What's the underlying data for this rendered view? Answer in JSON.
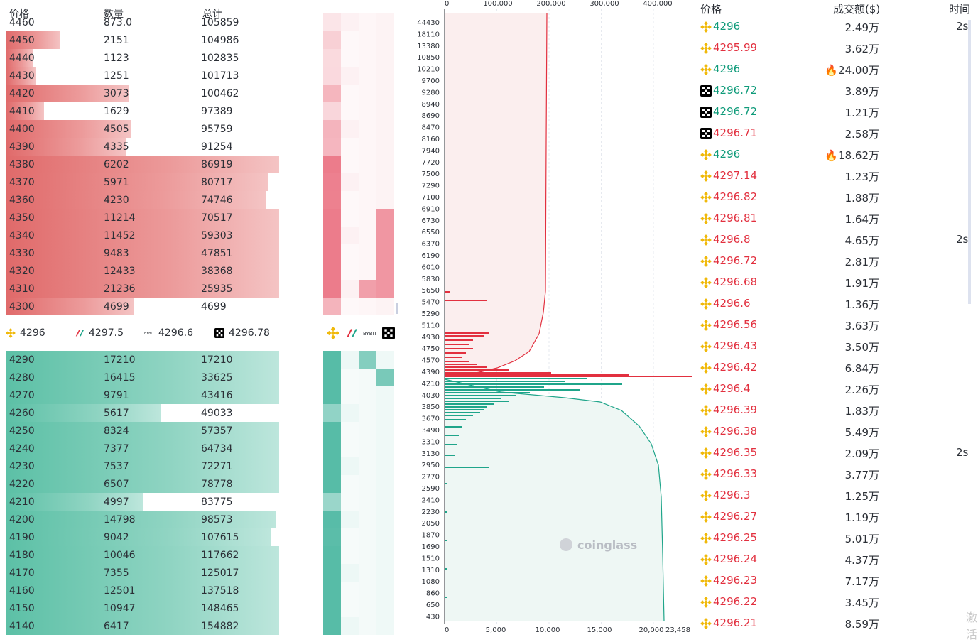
{
  "orderbook": {
    "headers": {
      "price": "价格",
      "qty": "数量",
      "total": "总计"
    },
    "asks": [
      {
        "price": "4460",
        "qty": "873.0",
        "total": "105859",
        "fill": 0.0
      },
      {
        "price": "4450",
        "qty": "2151",
        "total": "104986",
        "fill": 0.2
      },
      {
        "price": "4440",
        "qty": "1123",
        "total": "102835",
        "fill": 0.1
      },
      {
        "price": "4430",
        "qty": "1251",
        "total": "101713",
        "fill": 0.11
      },
      {
        "price": "4420",
        "qty": "3073",
        "total": "100462",
        "fill": 0.45
      },
      {
        "price": "4410",
        "qty": "1629",
        "total": "97389",
        "fill": 0.14
      },
      {
        "price": "4400",
        "qty": "4505",
        "total": "95759",
        "fill": 0.46
      },
      {
        "price": "4390",
        "qty": "4335",
        "total": "91254",
        "fill": 0.44
      },
      {
        "price": "4380",
        "qty": "6202",
        "total": "86919",
        "fill": 1.0
      },
      {
        "price": "4370",
        "qty": "5971",
        "total": "80717",
        "fill": 0.96
      },
      {
        "price": "4360",
        "qty": "4230",
        "total": "74746",
        "fill": 0.95
      },
      {
        "price": "4350",
        "qty": "11214",
        "total": "70517",
        "fill": 1.0
      },
      {
        "price": "4340",
        "qty": "11452",
        "total": "59303",
        "fill": 1.0
      },
      {
        "price": "4330",
        "qty": "9483",
        "total": "47851",
        "fill": 1.0
      },
      {
        "price": "4320",
        "qty": "12433",
        "total": "38368",
        "fill": 1.0
      },
      {
        "price": "4310",
        "qty": "21236",
        "total": "25935",
        "fill": 1.0
      },
      {
        "price": "4300",
        "qty": "4699",
        "total": "4699",
        "fill": 0.47
      }
    ],
    "exchanges": [
      {
        "name": "binance",
        "icon": "binance-icon",
        "price": "4296"
      },
      {
        "name": "okx",
        "icon": "okx-slash-icon",
        "price": "4297.5"
      },
      {
        "name": "bybit",
        "icon": "bybit-icon",
        "price": "4296.6"
      },
      {
        "name": "okx2",
        "icon": "okx-icon",
        "price": "4296.78"
      }
    ],
    "bids": [
      {
        "price": "4290",
        "qty": "17210",
        "total": "17210",
        "fill": 1.0
      },
      {
        "price": "4280",
        "qty": "16415",
        "total": "33625",
        "fill": 1.0
      },
      {
        "price": "4270",
        "qty": "9791",
        "total": "43416",
        "fill": 1.0
      },
      {
        "price": "4260",
        "qty": "5617",
        "total": "49033",
        "fill": 0.57
      },
      {
        "price": "4250",
        "qty": "8324",
        "total": "57357",
        "fill": 1.0
      },
      {
        "price": "4240",
        "qty": "7377",
        "total": "64734",
        "fill": 1.0
      },
      {
        "price": "4230",
        "qty": "7537",
        "total": "72271",
        "fill": 1.0
      },
      {
        "price": "4220",
        "qty": "6507",
        "total": "78778",
        "fill": 1.0
      },
      {
        "price": "4210",
        "qty": "4997",
        "total": "83775",
        "fill": 0.5
      },
      {
        "price": "4200",
        "qty": "14798",
        "total": "98573",
        "fill": 0.99
      },
      {
        "price": "4190",
        "qty": "9042",
        "total": "107615",
        "fill": 0.97
      },
      {
        "price": "4180",
        "qty": "10046",
        "total": "117662",
        "fill": 1.0
      },
      {
        "price": "4170",
        "qty": "7355",
        "total": "125017",
        "fill": 1.0
      },
      {
        "price": "4160",
        "qty": "12501",
        "total": "137518",
        "fill": 1.0
      },
      {
        "price": "4150",
        "qty": "10947",
        "total": "148465",
        "fill": 1.0
      },
      {
        "price": "4140",
        "qty": "6417",
        "total": "154882",
        "fill": 1.0
      }
    ]
  },
  "depth_chart": {
    "top_axis": [
      "0",
      "100,000",
      "200,000",
      "300,000",
      "400,000"
    ],
    "bottom_axis": [
      "0",
      "5,000",
      "10,000",
      "15,000",
      "20,000",
      "23,458"
    ],
    "price_labels": [
      "44430",
      "18110",
      "13380",
      "10850",
      "10210",
      "9700",
      "9280",
      "8940",
      "8690",
      "8470",
      "8160",
      "7940",
      "7720",
      "7500",
      "7290",
      "7100",
      "6910",
      "6730",
      "6550",
      "6370",
      "6190",
      "6010",
      "5830",
      "5650",
      "5470",
      "5290",
      "5110",
      "4930",
      "4750",
      "4570",
      "4390",
      "4210",
      "4030",
      "3850",
      "3670",
      "3490",
      "3310",
      "3130",
      "2950",
      "2770",
      "2590",
      "2410",
      "2230",
      "2050",
      "1870",
      "1690",
      "1510",
      "1310",
      "1080",
      "860",
      "650",
      "430"
    ],
    "watermark": "coinglass",
    "colors": {
      "ask": "#e2303f",
      "bid": "#1fa58a"
    }
  },
  "trades": {
    "headers": {
      "price": "价格",
      "amount": "成交额($)",
      "time": "时间"
    },
    "rows": [
      {
        "icon": "binance-icon",
        "price": "4296",
        "side": "buy",
        "amount": "2.49万",
        "time": "2s",
        "hot": false
      },
      {
        "icon": "binance-icon",
        "price": "4295.99",
        "side": "sell",
        "amount": "3.62万",
        "time": "",
        "hot": false
      },
      {
        "icon": "binance-icon",
        "price": "4296",
        "side": "buy",
        "amount": "24.00万",
        "time": "",
        "hot": true
      },
      {
        "icon": "okx-icon",
        "price": "4296.72",
        "side": "buy",
        "amount": "3.89万",
        "time": "",
        "hot": false
      },
      {
        "icon": "okx-icon",
        "price": "4296.72",
        "side": "buy",
        "amount": "1.21万",
        "time": "",
        "hot": false
      },
      {
        "icon": "okx-icon",
        "price": "4296.71",
        "side": "sell",
        "amount": "2.58万",
        "time": "",
        "hot": false
      },
      {
        "icon": "binance-icon",
        "price": "4296",
        "side": "buy",
        "amount": "18.62万",
        "time": "",
        "hot": true
      },
      {
        "icon": "binance-icon",
        "price": "4297.14",
        "side": "sell",
        "amount": "1.23万",
        "time": "",
        "hot": false
      },
      {
        "icon": "binance-icon",
        "price": "4296.82",
        "side": "sell",
        "amount": "1.88万",
        "time": "",
        "hot": false
      },
      {
        "icon": "binance-icon",
        "price": "4296.81",
        "side": "sell",
        "amount": "1.64万",
        "time": "",
        "hot": false
      },
      {
        "icon": "binance-icon",
        "price": "4296.8",
        "side": "sell",
        "amount": "4.65万",
        "time": "2s",
        "hot": false
      },
      {
        "icon": "binance-icon",
        "price": "4296.72",
        "side": "sell",
        "amount": "2.81万",
        "time": "",
        "hot": false
      },
      {
        "icon": "binance-icon",
        "price": "4296.68",
        "side": "sell",
        "amount": "1.91万",
        "time": "",
        "hot": false
      },
      {
        "icon": "binance-icon",
        "price": "4296.6",
        "side": "sell",
        "amount": "1.36万",
        "time": "",
        "hot": false
      },
      {
        "icon": "binance-icon",
        "price": "4296.56",
        "side": "sell",
        "amount": "3.63万",
        "time": "",
        "hot": false
      },
      {
        "icon": "binance-icon",
        "price": "4296.43",
        "side": "sell",
        "amount": "3.50万",
        "time": "",
        "hot": false
      },
      {
        "icon": "binance-icon",
        "price": "4296.42",
        "side": "sell",
        "amount": "6.84万",
        "time": "",
        "hot": false
      },
      {
        "icon": "binance-icon",
        "price": "4296.4",
        "side": "sell",
        "amount": "2.26万",
        "time": "",
        "hot": false
      },
      {
        "icon": "binance-icon",
        "price": "4296.39",
        "side": "sell",
        "amount": "1.83万",
        "time": "",
        "hot": false
      },
      {
        "icon": "binance-icon",
        "price": "4296.38",
        "side": "sell",
        "amount": "5.49万",
        "time": "",
        "hot": false
      },
      {
        "icon": "binance-icon",
        "price": "4296.35",
        "side": "sell",
        "amount": "2.09万",
        "time": "2s",
        "hot": false
      },
      {
        "icon": "binance-icon",
        "price": "4296.33",
        "side": "sell",
        "amount": "3.77万",
        "time": "",
        "hot": false
      },
      {
        "icon": "binance-icon",
        "price": "4296.3",
        "side": "sell",
        "amount": "1.25万",
        "time": "",
        "hot": false
      },
      {
        "icon": "binance-icon",
        "price": "4296.27",
        "side": "sell",
        "amount": "1.19万",
        "time": "",
        "hot": false
      },
      {
        "icon": "binance-icon",
        "price": "4296.25",
        "side": "sell",
        "amount": "5.01万",
        "time": "",
        "hot": false
      },
      {
        "icon": "binance-icon",
        "price": "4296.24",
        "side": "sell",
        "amount": "4.37万",
        "time": "",
        "hot": false
      },
      {
        "icon": "binance-icon",
        "price": "4296.23",
        "side": "sell",
        "amount": "7.17万",
        "time": "",
        "hot": false
      },
      {
        "icon": "binance-icon",
        "price": "4296.22",
        "side": "sell",
        "amount": "3.45万",
        "time": "",
        "hot": false
      },
      {
        "icon": "binance-icon",
        "price": "4296.21",
        "side": "sell",
        "amount": "8.59万",
        "time": "",
        "hot": false
      }
    ]
  },
  "watermark_corner": "激活"
}
